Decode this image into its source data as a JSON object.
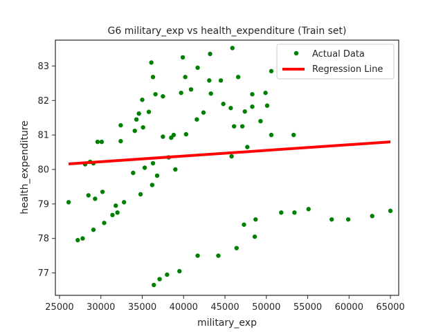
{
  "chart_data": {
    "type": "scatter",
    "title": "G6 military_exp vs health_expenditure (Train set)",
    "xlabel": "military_exp",
    "ylabel": "health_expenditure",
    "xlim": [
      24500,
      66000
    ],
    "ylim": [
      76.35,
      83.75
    ],
    "xticks": [
      25000,
      30000,
      35000,
      40000,
      45000,
      50000,
      55000,
      60000,
      65000
    ],
    "yticks": [
      77,
      78,
      79,
      80,
      81,
      82,
      83
    ],
    "grid": false,
    "legend_position": "top-right",
    "colors": {
      "points": "#008000",
      "line": "#ff0000",
      "axes": "#262626"
    },
    "series": [
      {
        "name": "Actual Data",
        "kind": "scatter",
        "points": [
          [
            26100,
            79.05
          ],
          [
            27200,
            77.95
          ],
          [
            27800,
            78.0
          ],
          [
            28100,
            80.15
          ],
          [
            28500,
            79.25
          ],
          [
            28700,
            80.22
          ],
          [
            29100,
            80.18
          ],
          [
            29300,
            79.15
          ],
          [
            29100,
            78.25
          ],
          [
            29600,
            80.8
          ],
          [
            30100,
            80.8
          ],
          [
            30200,
            79.35
          ],
          [
            30400,
            78.45
          ],
          [
            31400,
            78.68
          ],
          [
            31800,
            78.95
          ],
          [
            32000,
            78.75
          ],
          [
            32400,
            81.28
          ],
          [
            32400,
            80.82
          ],
          [
            32800,
            79.05
          ],
          [
            33900,
            79.9
          ],
          [
            34100,
            81.12
          ],
          [
            34300,
            81.45
          ],
          [
            34600,
            81.62
          ],
          [
            34800,
            79.28
          ],
          [
            35000,
            82.02
          ],
          [
            35100,
            81.22
          ],
          [
            35300,
            80.05
          ],
          [
            35800,
            81.67
          ],
          [
            36100,
            83.1
          ],
          [
            36200,
            79.55
          ],
          [
            36300,
            80.18
          ],
          [
            36300,
            82.68
          ],
          [
            36400,
            76.65
          ],
          [
            36600,
            82.18
          ],
          [
            36800,
            79.82
          ],
          [
            37100,
            76.82
          ],
          [
            37500,
            82.12
          ],
          [
            37500,
            80.95
          ],
          [
            38000,
            76.95
          ],
          [
            38200,
            80.35
          ],
          [
            38500,
            80.92
          ],
          [
            38800,
            81.0
          ],
          [
            39000,
            80.0
          ],
          [
            39500,
            77.05
          ],
          [
            39700,
            82.22
          ],
          [
            39900,
            83.25
          ],
          [
            40200,
            82.68
          ],
          [
            40300,
            81.02
          ],
          [
            40900,
            82.32
          ],
          [
            41600,
            81.45
          ],
          [
            41700,
            82.95
          ],
          [
            41700,
            77.5
          ],
          [
            42400,
            81.65
          ],
          [
            43100,
            82.58
          ],
          [
            43200,
            83.35
          ],
          [
            43300,
            82.2
          ],
          [
            44200,
            77.5
          ],
          [
            44500,
            82.58
          ],
          [
            44800,
            81.9
          ],
          [
            45700,
            81.78
          ],
          [
            45800,
            80.38
          ],
          [
            45900,
            83.52
          ],
          [
            46100,
            81.25
          ],
          [
            46400,
            77.72
          ],
          [
            46600,
            82.68
          ],
          [
            47100,
            81.25
          ],
          [
            47300,
            78.4
          ],
          [
            47400,
            81.68
          ],
          [
            47700,
            80.65
          ],
          [
            48300,
            82.18
          ],
          [
            48300,
            81.82
          ],
          [
            48600,
            78.05
          ],
          [
            48700,
            78.55
          ],
          [
            49300,
            81.4
          ],
          [
            49900,
            82.22
          ],
          [
            50100,
            81.85
          ],
          [
            50600,
            82.85
          ],
          [
            50600,
            81.0
          ],
          [
            51800,
            78.75
          ],
          [
            53300,
            81.0
          ],
          [
            53400,
            78.75
          ],
          [
            55100,
            78.85
          ],
          [
            57900,
            78.55
          ],
          [
            59900,
            78.55
          ],
          [
            62800,
            78.65
          ],
          [
            65000,
            78.8
          ]
        ]
      },
      {
        "name": "Regression Line",
        "kind": "line",
        "points": [
          [
            26100,
            80.16
          ],
          [
            65000,
            80.8
          ]
        ]
      }
    ]
  }
}
